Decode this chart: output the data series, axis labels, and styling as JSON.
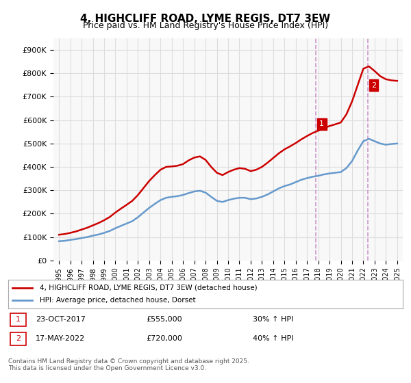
{
  "title": "4, HIGHCLIFF ROAD, LYME REGIS, DT7 3EW",
  "subtitle": "Price paid vs. HM Land Registry's House Price Index (HPI)",
  "hpi_label": "HPI: Average price, detached house, Dorset",
  "property_label": "4, HIGHCLIFF ROAD, LYME REGIS, DT7 3EW (detached house)",
  "property_color": "#cc0000",
  "hpi_color": "#6699cc",
  "background_color": "#f8f8f8",
  "grid_color": "#dddddd",
  "annotation1": {
    "num": "1",
    "date": "23-OCT-2017",
    "price": "£555,000",
    "hpi": "30% ↑ HPI",
    "x": 2017.8,
    "y_prop": 555000,
    "y_vline": true
  },
  "annotation2": {
    "num": "2",
    "date": "17-MAY-2022",
    "price": "£720,000",
    "hpi": "40% ↑ HPI",
    "x": 2022.4,
    "y_prop": 720000,
    "y_vline": true
  },
  "ylim": [
    0,
    950000
  ],
  "yticks": [
    0,
    100000,
    200000,
    300000,
    400000,
    500000,
    600000,
    700000,
    800000,
    900000
  ],
  "ytick_labels": [
    "£0",
    "£100K",
    "£200K",
    "£300K",
    "£400K",
    "£500K",
    "£600K",
    "£700K",
    "£800K",
    "£900K"
  ],
  "xlim": [
    1994.5,
    2025.5
  ],
  "footer": "Contains HM Land Registry data © Crown copyright and database right 2025.\nThis data is licensed under the Open Government Licence v3.0.",
  "hpi_years": [
    1995,
    1995.5,
    1996,
    1996.5,
    1997,
    1997.5,
    1998,
    1998.5,
    1999,
    1999.5,
    2000,
    2000.5,
    2001,
    2001.5,
    2002,
    2002.5,
    2003,
    2003.5,
    2004,
    2004.5,
    2005,
    2005.5,
    2006,
    2006.5,
    2007,
    2007.5,
    2008,
    2008.5,
    2009,
    2009.5,
    2010,
    2010.5,
    2011,
    2011.5,
    2012,
    2012.5,
    2013,
    2013.5,
    2014,
    2014.5,
    2015,
    2015.5,
    2016,
    2016.5,
    2017,
    2017.5,
    2018,
    2018.5,
    2019,
    2019.5,
    2020,
    2020.5,
    2021,
    2021.5,
    2022,
    2022.5,
    2023,
    2023.5,
    2024,
    2024.5,
    2025
  ],
  "hpi_values": [
    82000,
    84000,
    88000,
    91000,
    96000,
    100000,
    106000,
    111000,
    118000,
    126000,
    138000,
    148000,
    158000,
    168000,
    185000,
    205000,
    225000,
    242000,
    258000,
    268000,
    272000,
    275000,
    280000,
    288000,
    295000,
    298000,
    290000,
    272000,
    255000,
    250000,
    258000,
    264000,
    268000,
    268000,
    262000,
    265000,
    272000,
    282000,
    295000,
    308000,
    318000,
    325000,
    335000,
    345000,
    352000,
    358000,
    362000,
    368000,
    372000,
    375000,
    378000,
    395000,
    425000,
    470000,
    510000,
    520000,
    510000,
    500000,
    495000,
    498000,
    500000
  ],
  "prop_years": [
    1995,
    1995.5,
    1996,
    1996.5,
    1997,
    1997.5,
    1998,
    1998.5,
    1999,
    1999.5,
    2000,
    2000.5,
    2001,
    2001.5,
    2002,
    2002.5,
    2003,
    2003.5,
    2004,
    2004.5,
    2005,
    2005.5,
    2006,
    2006.5,
    2007,
    2007.5,
    2008,
    2008.5,
    2009,
    2009.5,
    2010,
    2010.5,
    2011,
    2011.5,
    2012,
    2012.5,
    2013,
    2013.5,
    2014,
    2014.5,
    2015,
    2015.5,
    2016,
    2016.5,
    2017,
    2017.5,
    2018,
    2018.5,
    2019,
    2019.5,
    2020,
    2020.5,
    2021,
    2021.5,
    2022,
    2022.5,
    2023,
    2023.5,
    2024,
    2024.5,
    2025
  ],
  "prop_values": [
    110000,
    113000,
    118000,
    124000,
    132000,
    140000,
    150000,
    160000,
    172000,
    186000,
    205000,
    222000,
    238000,
    255000,
    280000,
    310000,
    340000,
    365000,
    388000,
    400000,
    402000,
    405000,
    412000,
    428000,
    440000,
    445000,
    430000,
    400000,
    375000,
    365000,
    378000,
    388000,
    395000,
    392000,
    382000,
    388000,
    400000,
    418000,
    438000,
    458000,
    475000,
    488000,
    502000,
    518000,
    532000,
    545000,
    555000,
    565000,
    575000,
    582000,
    590000,
    625000,
    680000,
    750000,
    820000,
    830000,
    810000,
    788000,
    775000,
    770000,
    768000
  ],
  "vline_color": "#cc99cc",
  "vline_style": "--"
}
